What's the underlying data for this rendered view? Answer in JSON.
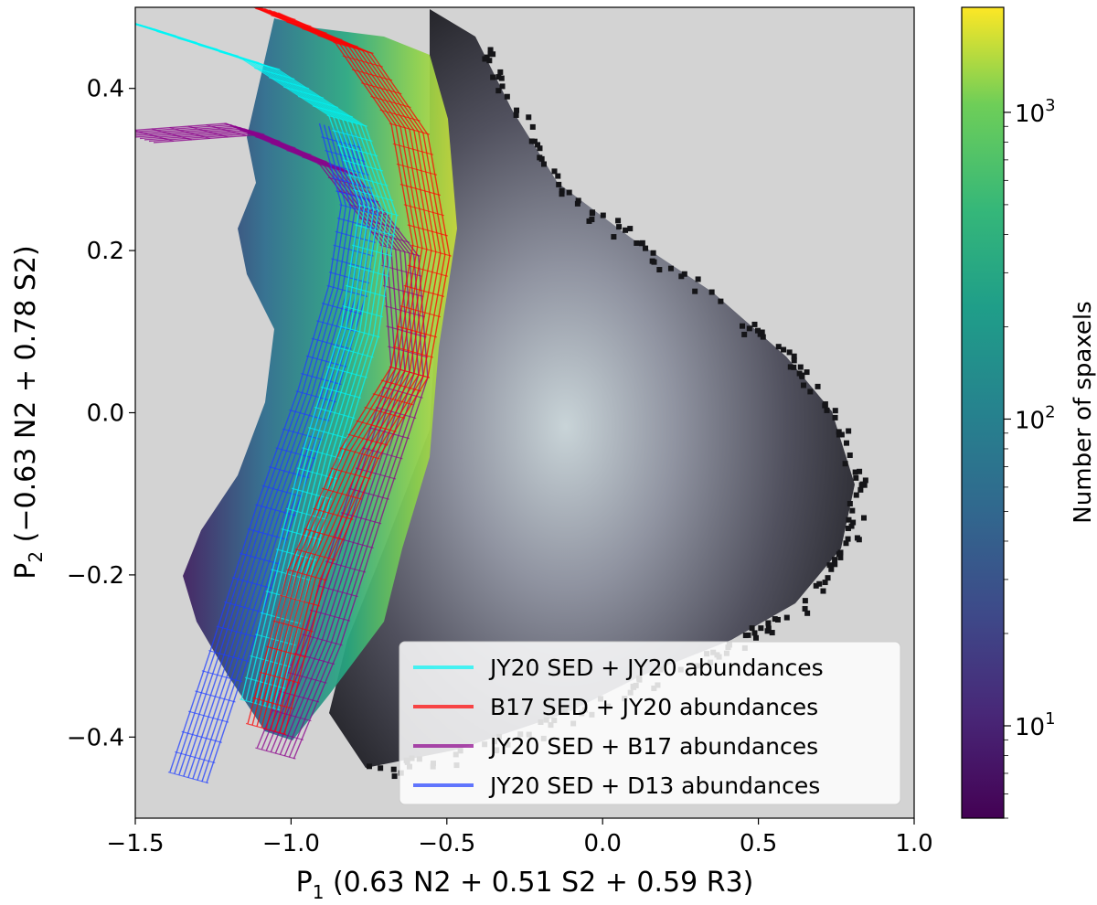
{
  "chart_data": {
    "type": "heatmap",
    "x_label_main": "P",
    "x_label_sub": "1",
    "x_label_rest": " (0.63 N2 + 0.51 S2 + 0.59 R3)",
    "y_label_main": "P",
    "y_label_sub": "2",
    "y_label_rest": " (−0.63 N2 + 0.78 S2)",
    "xlim": [
      -1.5,
      1.0
    ],
    "ylim": [
      -0.5,
      0.5
    ],
    "x_ticks": [
      {
        "value": -1.5,
        "label": "−1.5"
      },
      {
        "value": -1.0,
        "label": "−1.0"
      },
      {
        "value": -0.5,
        "label": "−0.5"
      },
      {
        "value": 0.0,
        "label": "0.0"
      },
      {
        "value": 0.5,
        "label": "0.5"
      },
      {
        "value": 1.0,
        "label": "1.0"
      }
    ],
    "y_ticks": [
      {
        "value": -0.4,
        "label": "−0.4"
      },
      {
        "value": -0.2,
        "label": "−0.2"
      },
      {
        "value": 0.0,
        "label": "0.0"
      },
      {
        "value": 0.2,
        "label": "0.2"
      },
      {
        "value": 0.4,
        "label": "0.4"
      }
    ],
    "background_color": "#d3d3d3",
    "colorbar": {
      "label": "Number of spaxels",
      "scale": "log",
      "range": [
        5,
        2200
      ],
      "colormap": "viridis",
      "ticks": [
        {
          "value": 10,
          "base": "10",
          "exp": "1"
        },
        {
          "value": 100,
          "base": "10",
          "exp": "2"
        },
        {
          "value": 1000,
          "base": "10",
          "exp": "3"
        }
      ]
    },
    "legend_position": "lower right",
    "series": [
      {
        "name": "JY20 SED + JY20 abundances",
        "color": "#00f5f5",
        "type": "model-grid",
        "center_line": [
          [
            -1.1,
            -0.36
          ],
          [
            -1.0,
            -0.2
          ],
          [
            -0.9,
            -0.05
          ],
          [
            -0.78,
            0.1
          ],
          [
            -0.72,
            0.25
          ],
          [
            -0.82,
            0.36
          ],
          [
            -1.1,
            0.43
          ],
          [
            -1.5,
            0.48
          ]
        ]
      },
      {
        "name": "B17 SED + JY20 abundances",
        "color": "#ff0000",
        "type": "model-grid",
        "center_line": [
          [
            -1.08,
            -0.39
          ],
          [
            -0.95,
            -0.2
          ],
          [
            -0.78,
            -0.05
          ],
          [
            -0.62,
            0.05
          ],
          [
            -0.55,
            0.2
          ],
          [
            -0.62,
            0.35
          ],
          [
            -0.8,
            0.45
          ],
          [
            -1.1,
            0.5
          ]
        ]
      },
      {
        "name": "JY20 SED + B17 abundances",
        "color": "#8b008b",
        "type": "model-grid",
        "center_line": [
          [
            -1.05,
            -0.42
          ],
          [
            -0.9,
            -0.28
          ],
          [
            -0.75,
            -0.1
          ],
          [
            -0.62,
            0.05
          ],
          [
            -0.65,
            0.2
          ],
          [
            -0.85,
            0.3
          ],
          [
            -1.15,
            0.35
          ],
          [
            -1.5,
            0.34
          ]
        ]
      },
      {
        "name": "JY20 SED + D13 abundances",
        "color": "#1f3dff",
        "type": "model-grid",
        "center_line": [
          [
            -1.33,
            -0.45
          ],
          [
            -1.2,
            -0.3
          ],
          [
            -1.05,
            -0.12
          ],
          [
            -0.92,
            0.02
          ],
          [
            -0.82,
            0.15
          ],
          [
            -0.78,
            0.25
          ],
          [
            -0.85,
            0.35
          ]
        ]
      }
    ]
  }
}
